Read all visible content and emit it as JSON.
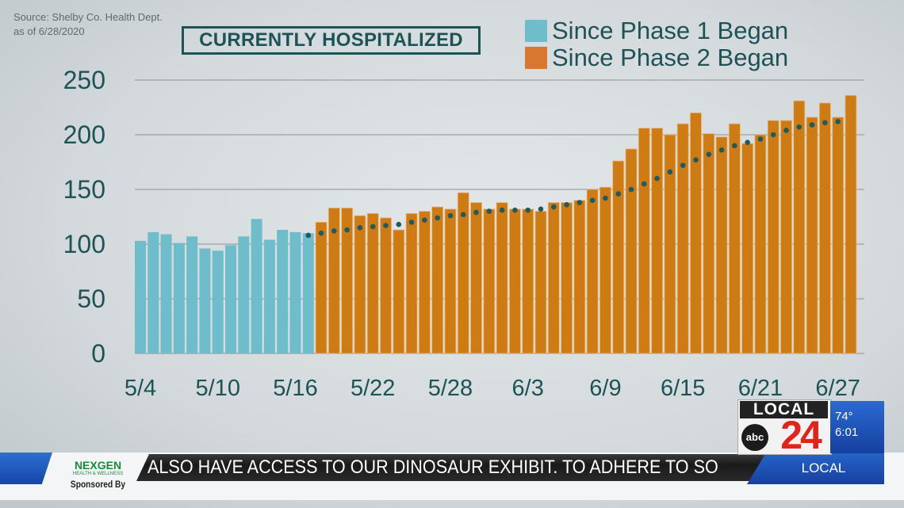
{
  "source": {
    "line1": "Source: Shelby Co. Health Dept.",
    "line2": "as of 6/28/2020"
  },
  "chart_data": {
    "type": "bar",
    "title": "CURRENTLY HOSPITALIZED",
    "xlabel": "",
    "ylabel": "",
    "ylim": [
      0,
      250
    ],
    "yticks": [
      "0",
      "50",
      "100",
      "150",
      "200",
      "250"
    ],
    "grid": true,
    "legend_placement": "top-right",
    "xtick_labels": [
      "5/4",
      "5/10",
      "5/16",
      "5/22",
      "5/28",
      "6/3",
      "6/9",
      "6/15",
      "6/21",
      "6/27"
    ],
    "series": [
      {
        "name": "Since Phase 1 Began",
        "color": "#6fbccb",
        "dates": [
          "5/4",
          "5/5",
          "5/6",
          "5/7",
          "5/8",
          "5/9",
          "5/10",
          "5/11",
          "5/12",
          "5/13",
          "5/14",
          "5/15",
          "5/16",
          "5/17"
        ],
        "values": [
          103,
          111,
          109,
          101,
          107,
          96,
          94,
          99,
          107,
          123,
          104,
          113,
          111,
          110
        ]
      },
      {
        "name": "Since Phase 2 Began",
        "color": "#cf7b14",
        "dates": [
          "5/18",
          "5/19",
          "5/20",
          "5/21",
          "5/22",
          "5/23",
          "5/24",
          "5/25",
          "5/26",
          "5/27",
          "5/28",
          "5/29",
          "5/30",
          "5/31",
          "6/1",
          "6/2",
          "6/3",
          "6/4",
          "6/5",
          "6/6",
          "6/7",
          "6/8",
          "6/9",
          "6/10",
          "6/11",
          "6/12",
          "6/13",
          "6/14",
          "6/15",
          "6/16",
          "6/17",
          "6/18",
          "6/19",
          "6/20",
          "6/21",
          "6/22",
          "6/23",
          "6/24",
          "6/25",
          "6/26",
          "6/27",
          "6/28"
        ],
        "values": [
          120,
          133,
          133,
          126,
          128,
          124,
          113,
          128,
          130,
          134,
          132,
          147,
          138,
          132,
          138,
          132,
          132,
          130,
          138,
          138,
          140,
          150,
          152,
          176,
          187,
          206,
          206,
          200,
          210,
          220,
          201,
          198,
          210,
          192,
          200,
          213,
          213,
          231,
          216,
          229,
          216,
          236
        ]
      }
    ],
    "trend": {
      "style": "dotted",
      "color": "#1f5a5e",
      "start_date": "5/17",
      "values": [
        108,
        110,
        112,
        113,
        115,
        116,
        117,
        118,
        120,
        122,
        124,
        126,
        127,
        129,
        130,
        131,
        131,
        131,
        132,
        134,
        136,
        138,
        140,
        142,
        146,
        150,
        155,
        160,
        166,
        172,
        177,
        182,
        186,
        190,
        193,
        196,
        200,
        204,
        207,
        209,
        211,
        212
      ]
    }
  },
  "broadcast": {
    "ticker_text": "ALSO HAVE ACCESS TO OUR DINOSAUR EXHIBIT. TO ADHERE TO SO",
    "section_label": "LOCAL",
    "sponsor_brand": "NEXGEN",
    "sponsor_sub": "HEALTH & WELLNESS",
    "sponsored_by": "Sponsored By",
    "station_logo_top": "LOCAL",
    "station_logo_network": "abc",
    "station_logo_number": "24",
    "temperature": "74°",
    "time": "6:01"
  }
}
